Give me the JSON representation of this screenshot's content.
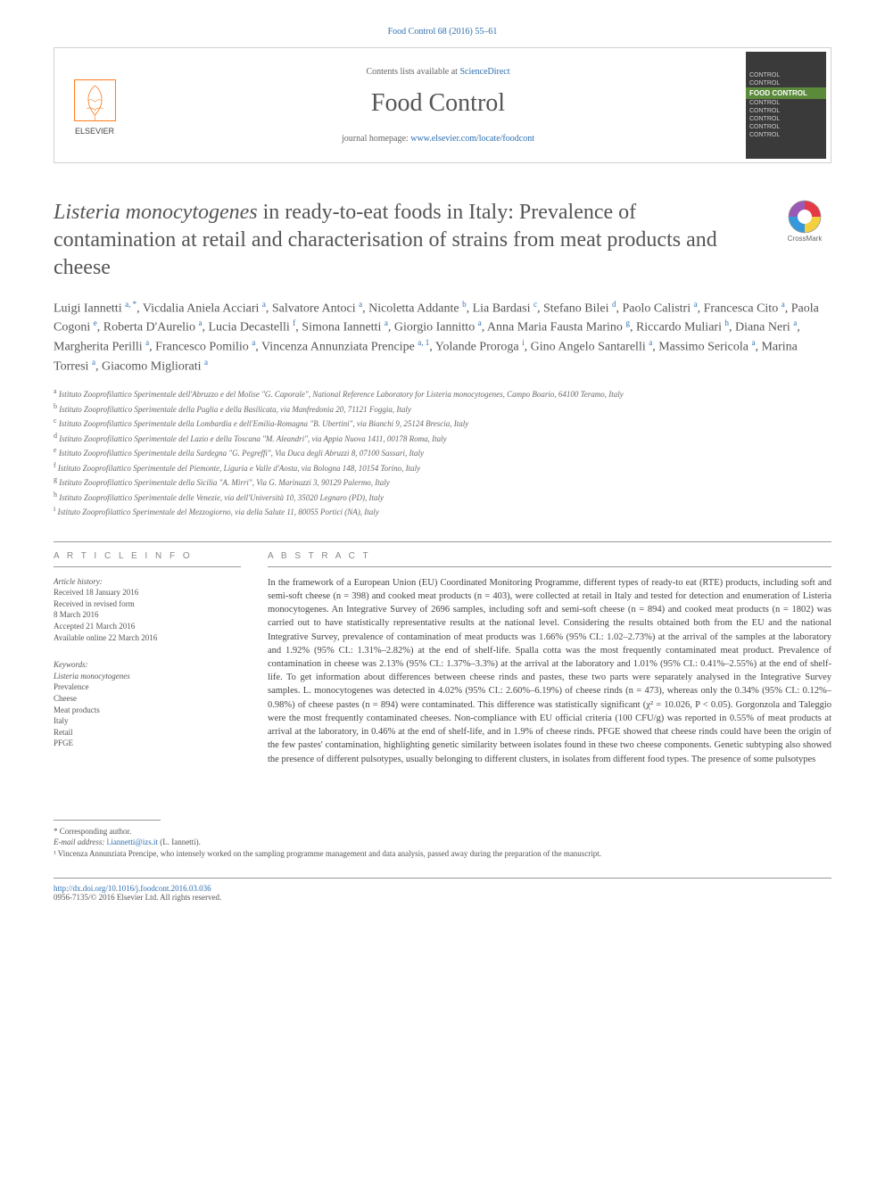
{
  "citation": "Food Control 68 (2016) 55–61",
  "header": {
    "contents_prefix": "Contents lists available at ",
    "contents_link": "ScienceDirect",
    "journal": "Food Control",
    "homepage_prefix": "journal homepage: ",
    "homepage_link": "www.elsevier.com/locate/foodcont",
    "publisher_logo_text": "ELSEVIER",
    "cover_lines": [
      "CONTROL",
      "CONTROL",
      "FOOD CONTROL",
      "CONTROL",
      "CONTROL",
      "CONTROL",
      "CONTROL",
      "CONTROL"
    ]
  },
  "title": {
    "italic_lead": "Listeria monocytogenes",
    "rest": " in ready-to-eat foods in Italy: Prevalence of contamination at retail and characterisation of strains from meat products and cheese"
  },
  "crossmark_label": "CrossMark",
  "authors_html": "Luigi Iannetti <sup>a, *</sup>, Vicdalia Aniela Acciari <sup>a</sup>, Salvatore Antoci <sup>a</sup>, Nicoletta Addante <sup>b</sup>, Lia Bardasi <sup>c</sup>, Stefano Bilei <sup>d</sup>, Paolo Calistri <sup>a</sup>, Francesca Cito <sup>a</sup>, Paola Cogoni <sup>e</sup>, Roberta D'Aurelio <sup>a</sup>, Lucia Decastelli <sup>f</sup>, Simona Iannetti <sup>a</sup>, Giorgio Iannitto <sup>a</sup>, Anna Maria Fausta Marino <sup>g</sup>, Riccardo Muliari <sup>h</sup>, Diana Neri <sup>a</sup>, Margherita Perilli <sup>a</sup>, Francesco Pomilio <sup>a</sup>, Vincenza Annunziata Prencipe <sup>a, 1</sup>, Yolande Proroga <sup>i</sup>, Gino Angelo Santarelli <sup>a</sup>, Massimo Sericola <sup>a</sup>, Marina Torresi <sup>a</sup>, Giacomo Migliorati <sup>a</sup>",
  "affiliations": [
    {
      "sup": "a",
      "text": "Istituto Zooprofilattico Sperimentale dell'Abruzzo e del Molise \"G. Caporale\", National Reference Laboratory for Listeria monocytogenes, Campo Boario, 64100 Teramo, Italy"
    },
    {
      "sup": "b",
      "text": "Istituto Zooprofilattico Sperimentale della Puglia e della Basilicata, via Manfredonia 20, 71121 Foggia, Italy"
    },
    {
      "sup": "c",
      "text": "Istituto Zooprofilattico Sperimentale della Lombardia e dell'Emilia-Romagna \"B. Ubertini\", via Bianchi 9, 25124 Brescia, Italy"
    },
    {
      "sup": "d",
      "text": "Istituto Zooprofilattico Sperimentale del Lazio e della Toscana \"M. Aleandri\", via Appia Nuova 1411, 00178 Roma, Italy"
    },
    {
      "sup": "e",
      "text": "Istituto Zooprofilattico Sperimentale della Sardegna \"G. Pegreffi\", Via Duca degli Abruzzi 8, 07100 Sassari, Italy"
    },
    {
      "sup": "f",
      "text": "Istituto Zooprofilattico Sperimentale del Piemonte, Liguria e Valle d'Aosta, via Bologna 148, 10154 Torino, Italy"
    },
    {
      "sup": "g",
      "text": "Istituto Zooprofilattico Sperimentale della Sicilia \"A. Mirri\", Via G. Marinuzzi 3, 90129 Palermo, Italy"
    },
    {
      "sup": "h",
      "text": "Istituto Zooprofilattico Sperimentale delle Venezie, via dell'Università 10, 35020 Legnaro (PD), Italy"
    },
    {
      "sup": "i",
      "text": "Istituto Zooprofilattico Sperimentale del Mezzogiorno, via della Salute 11, 80055 Portici (NA), Italy"
    }
  ],
  "info": {
    "heading": "A R T I C L E   I N F O",
    "history_label": "Article history:",
    "history_lines": [
      "Received 18 January 2016",
      "Received in revised form",
      "8 March 2016",
      "Accepted 21 March 2016",
      "Available online 22 March 2016"
    ],
    "keywords_label": "Keywords:",
    "keywords": [
      "Listeria monocytogenes",
      "Prevalence",
      "Cheese",
      "Meat products",
      "Italy",
      "Retail",
      "PFGE"
    ]
  },
  "abstract": {
    "heading": "A B S T R A C T",
    "body": "In the framework of a European Union (EU) Coordinated Monitoring Programme, different types of ready-to eat (RTE) products, including soft and semi-soft cheese (n = 398) and cooked meat products (n = 403), were collected at retail in Italy and tested for detection and enumeration of Listeria monocytogenes. An Integrative Survey of 2696 samples, including soft and semi-soft cheese (n = 894) and cooked meat products (n = 1802) was carried out to have statistically representative results at the national level. Considering the results obtained both from the EU and the national Integrative Survey, prevalence of contamination of meat products was 1.66% (95% CI.: 1.02–2.73%) at the arrival of the samples at the laboratory and 1.92% (95% CI.: 1.31%–2.82%) at the end of shelf-life. Spalla cotta was the most frequently contaminated meat product. Prevalence of contamination in cheese was 2.13% (95% CI.: 1.37%–3.3%) at the arrival at the laboratory and 1.01% (95% CI.: 0.41%–2.55%) at the end of shelf-life. To get information about differences between cheese rinds and pastes, these two parts were separately analysed in the Integrative Survey samples. L. monocytogenes was detected in 4.02% (95% CI.: 2.60%–6.19%) of cheese rinds (n = 473), whereas only the 0.34% (95% CI.: 0.12%–0.98%) of cheese pastes (n = 894) were contaminated. This difference was statistically significant (χ² = 10.026, P < 0.05). Gorgonzola and Taleggio were the most frequently contaminated cheeses. Non-compliance with EU official criteria (100 CFU/g) was reported in 0.55% of meat products at arrival at the laboratory, in 0.46% at the end of shelf-life, and in 1.9% of cheese rinds. PFGE showed that cheese rinds could have been the origin of the few pastes' contamination, highlighting genetic similarity between isolates found in these two cheese components. Genetic subtyping also showed the presence of different pulsotypes, usually belonging to different clusters, in isolates from different food types. The presence of some pulsotypes"
  },
  "footnotes": {
    "corr_label": "* Corresponding author.",
    "email_label": "E-mail address: ",
    "email": "l.iannetti@izs.it",
    "email_name": " (L. Iannetti).",
    "note1": "¹ Vincenza Annunziata Prencipe, who intensely worked on the sampling programme management and data analysis, passed away during the preparation of the manuscript."
  },
  "bottom": {
    "doi": "http://dx.doi.org/10.1016/j.foodcont.2016.03.036",
    "issn_line": "0956-7135/© 2016 Elsevier Ltd. All rights reserved."
  },
  "colors": {
    "link": "#2d6fb0",
    "accent": "#ff6c00",
    "text": "#444",
    "muted": "#666",
    "rule": "#999"
  }
}
